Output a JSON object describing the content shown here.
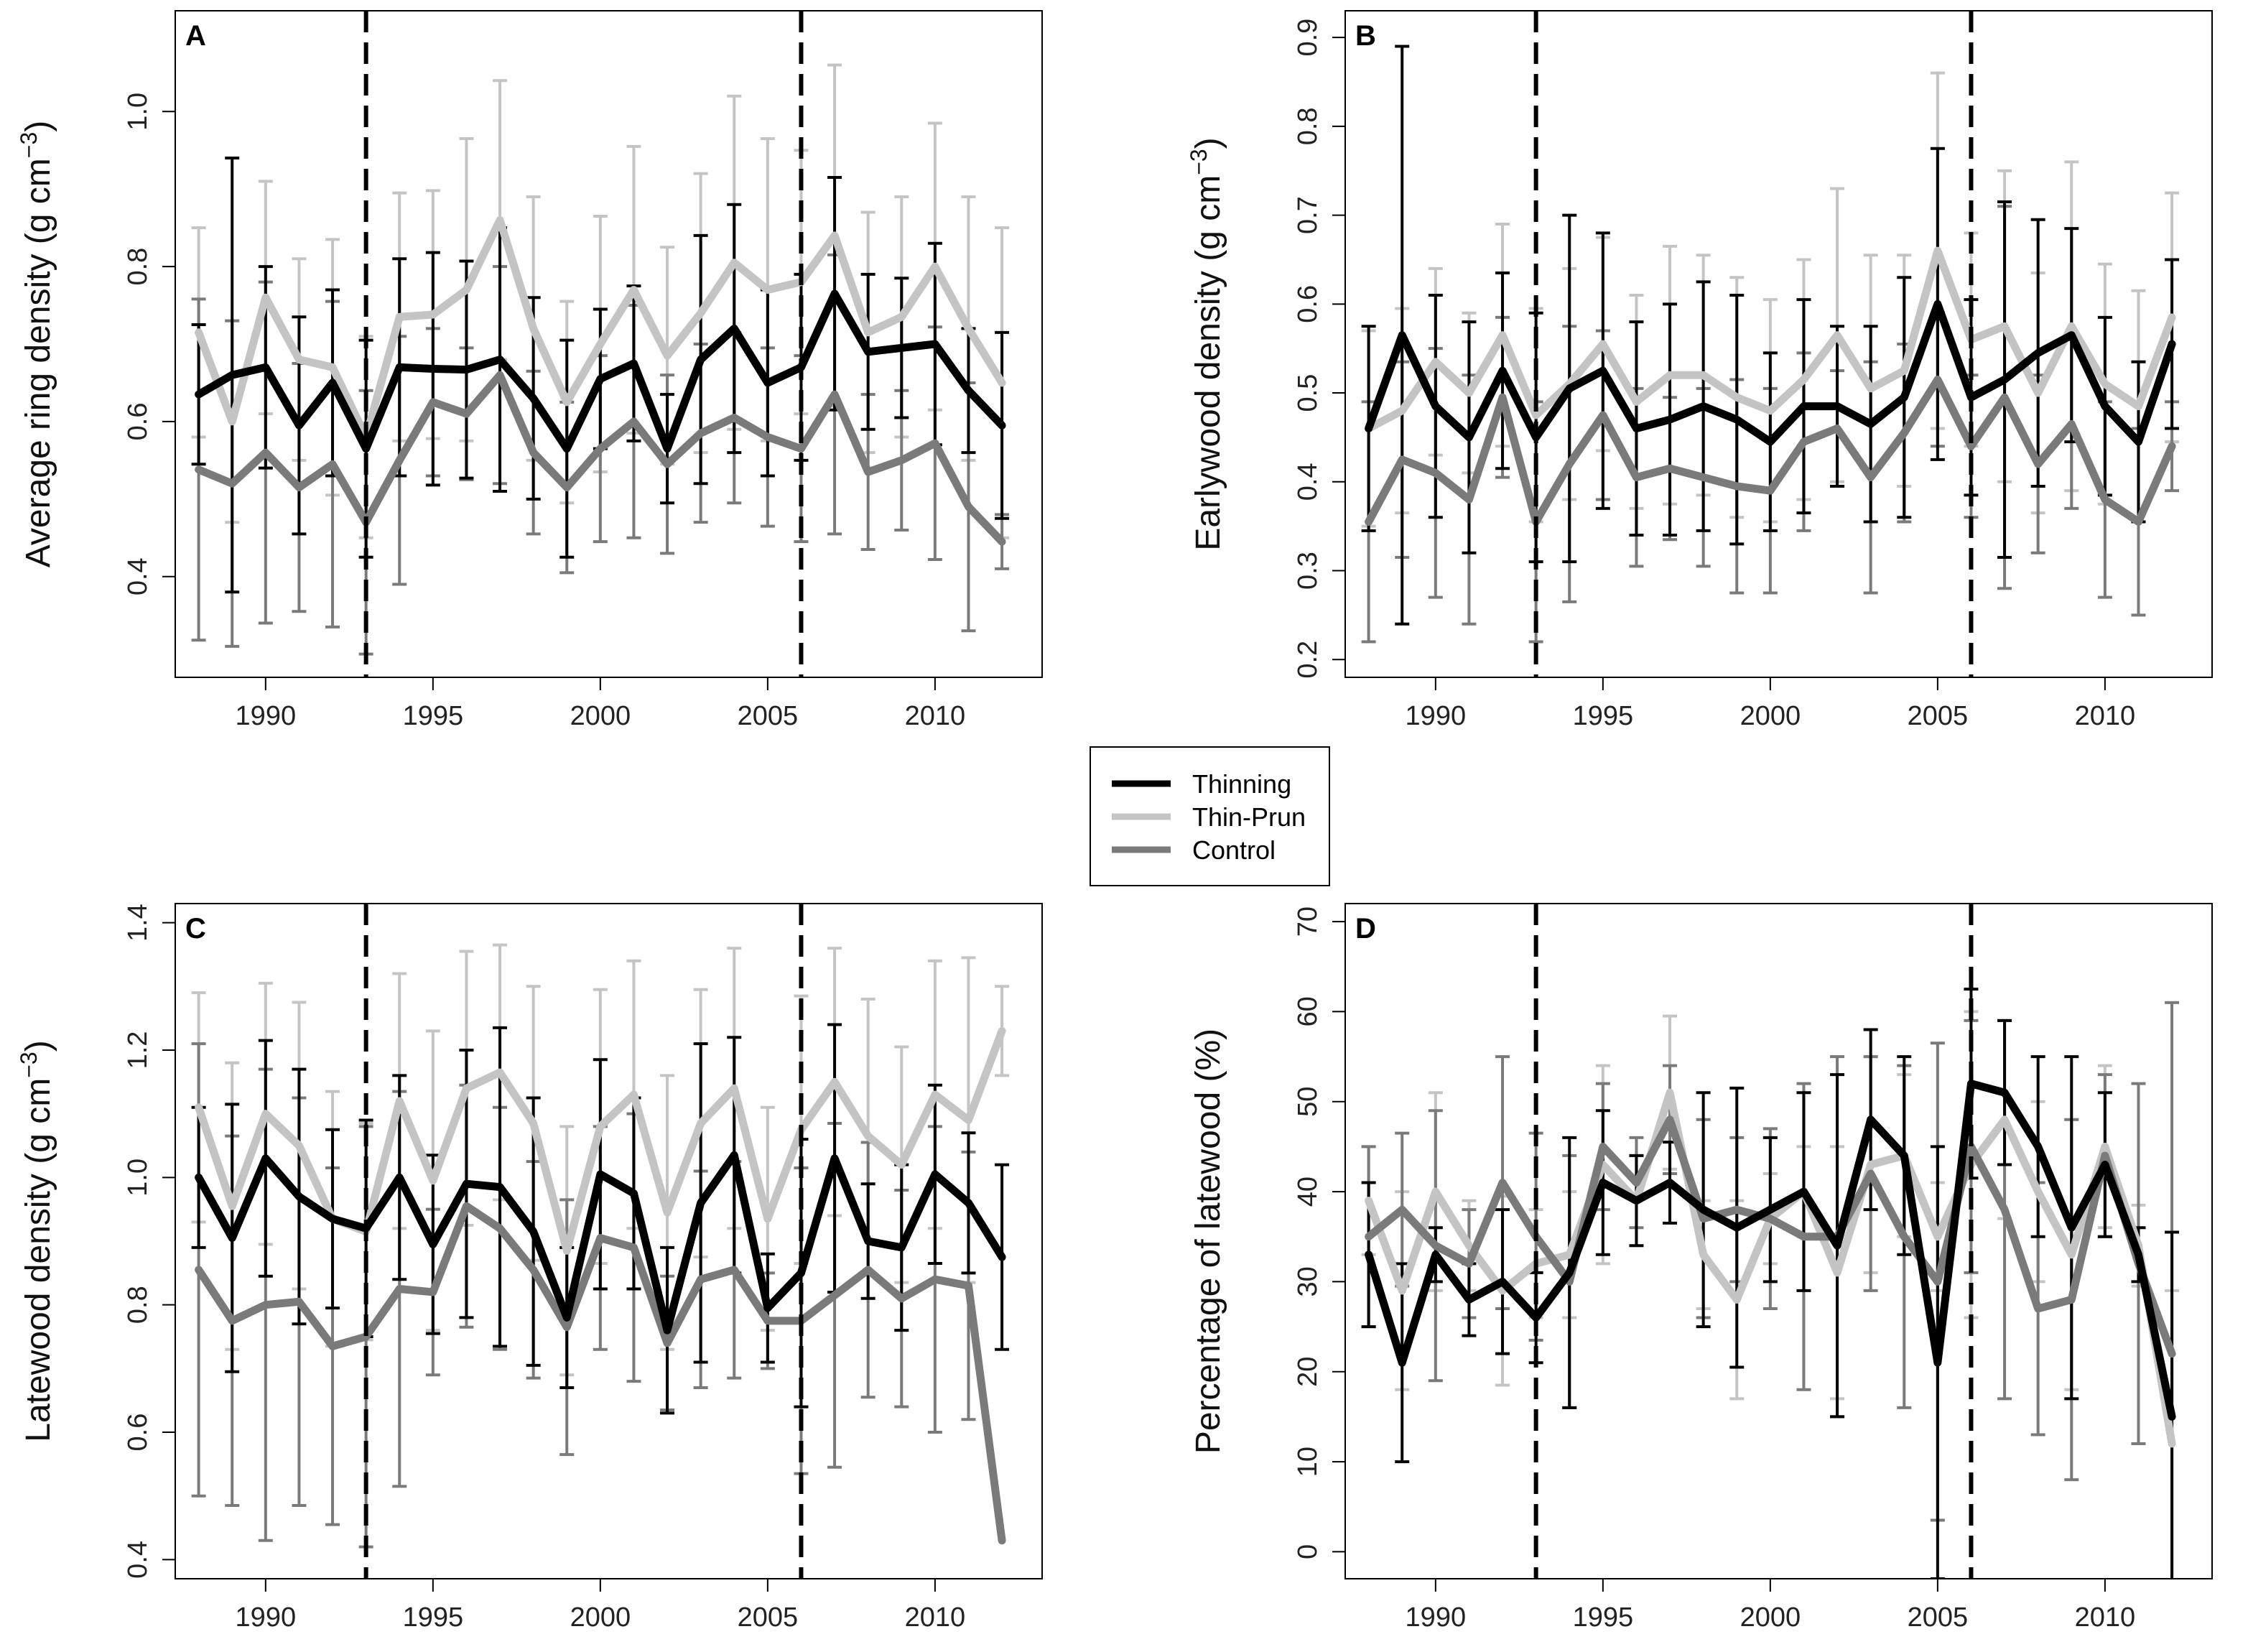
{
  "legend": {
    "items": [
      {
        "label": "Thinning",
        "color": "#000000"
      },
      {
        "label": "Thin-Prun",
        "color": "#c4c4c4"
      },
      {
        "label": "Control",
        "color": "#7a7a7a"
      }
    ]
  },
  "chart_data": [
    {
      "panel": "A",
      "type": "line",
      "ylabel": "Average ring density (g cm",
      "ylabel_unit_exp": "−3",
      "ylabel_close": ")",
      "xlim": [
        1987.3,
        2013.2
      ],
      "ylim": [
        0.27,
        1.13
      ],
      "yticks": [
        0.4,
        0.6,
        0.8,
        1.0
      ],
      "ytick_labels": [
        "0.4",
        "0.6",
        "0.8",
        "1.0"
      ],
      "xticks": [
        1990,
        1995,
        2000,
        2005,
        2010
      ],
      "xtick_labels": [
        "1990",
        "1995",
        "2000",
        "2005",
        "2010"
      ],
      "vlines": [
        1993,
        2006
      ],
      "x": [
        1988,
        1989,
        1990,
        1991,
        1992,
        1993,
        1994,
        1995,
        1996,
        1997,
        1998,
        1999,
        2000,
        2001,
        2002,
        2003,
        2004,
        2005,
        2006,
        2007,
        2008,
        2009,
        2010,
        2011,
        2012
      ],
      "series": [
        {
          "name": "Thinning",
          "color": "#000000",
          "values": [
            0.635,
            0.66,
            0.67,
            0.595,
            0.65,
            0.565,
            0.67,
            0.668,
            0.667,
            0.68,
            0.63,
            0.565,
            0.655,
            0.675,
            0.565,
            0.68,
            0.72,
            0.65,
            0.67,
            0.765,
            0.69,
            0.695,
            0.7,
            0.64,
            0.595
          ],
          "err": [
            0.09,
            0.28,
            0.13,
            0.14,
            0.12,
            0.14,
            0.14,
            0.15,
            0.14,
            0.17,
            0.13,
            0.14,
            0.09,
            0.1,
            0.07,
            0.16,
            0.16,
            0.12,
            0.12,
            0.15,
            0.1,
            0.09,
            0.13,
            0.08,
            0.12
          ]
        },
        {
          "name": "Thin-Prun",
          "color": "#c4c4c4",
          "values": [
            0.715,
            0.6,
            0.76,
            0.68,
            0.67,
            0.58,
            0.735,
            0.738,
            0.77,
            0.86,
            0.72,
            0.625,
            0.7,
            0.77,
            0.685,
            0.74,
            0.805,
            0.77,
            0.78,
            0.84,
            0.715,
            0.735,
            0.8,
            0.72,
            0.65
          ],
          "err": [
            0.135,
            0.13,
            0.15,
            0.13,
            0.165,
            0.13,
            0.16,
            0.16,
            0.195,
            0.18,
            0.17,
            0.13,
            0.165,
            0.185,
            0.14,
            0.18,
            0.215,
            0.195,
            0.17,
            0.22,
            0.155,
            0.155,
            0.185,
            0.17,
            0.2
          ]
        },
        {
          "name": "Control",
          "color": "#7a7a7a",
          "values": [
            0.538,
            0.52,
            0.56,
            0.515,
            0.545,
            0.47,
            0.55,
            0.625,
            0.61,
            0.66,
            0.56,
            0.515,
            0.565,
            0.6,
            0.545,
            0.585,
            0.605,
            0.58,
            0.565,
            0.635,
            0.535,
            0.55,
            0.572,
            0.49,
            0.445
          ],
          "err": [
            0.22,
            0.21,
            0.22,
            0.16,
            0.21,
            0.17,
            0.16,
            0.095,
            0.085,
            0.14,
            0.105,
            0.11,
            0.12,
            0.15,
            0.115,
            0.115,
            0.11,
            0.115,
            0.12,
            0.18,
            0.1,
            0.09,
            0.15,
            0.16,
            0.035
          ]
        }
      ]
    },
    {
      "panel": "B",
      "type": "line",
      "ylabel": "Earlywood density (g cm",
      "ylabel_unit_exp": "−3",
      "ylabel_close": ")",
      "xlim": [
        1987.3,
        2013.2
      ],
      "ylim": [
        0.18,
        0.93
      ],
      "yticks": [
        0.2,
        0.3,
        0.4,
        0.5,
        0.6,
        0.7,
        0.8,
        0.9
      ],
      "ytick_labels": [
        "0.2",
        "0.3",
        "0.4",
        "0.5",
        "0.6",
        "0.7",
        "0.8",
        "0.9"
      ],
      "xticks": [
        1990,
        1995,
        2000,
        2005,
        2010
      ],
      "xtick_labels": [
        "1990",
        "1995",
        "2000",
        "2005",
        "2010"
      ],
      "vlines": [
        1993,
        2006
      ],
      "x": [
        1988,
        1989,
        1990,
        1991,
        1992,
        1993,
        1994,
        1995,
        1996,
        1997,
        1998,
        1999,
        2000,
        2001,
        2002,
        2003,
        2004,
        2005,
        2006,
        2007,
        2008,
        2009,
        2010,
        2011,
        2012
      ],
      "series": [
        {
          "name": "Thinning",
          "color": "#000000",
          "values": [
            0.46,
            0.565,
            0.485,
            0.45,
            0.525,
            0.45,
            0.505,
            0.525,
            0.46,
            0.47,
            0.485,
            0.47,
            0.445,
            0.485,
            0.485,
            0.465,
            0.495,
            0.6,
            0.495,
            0.515,
            0.545,
            0.565,
            0.485,
            0.445,
            0.555
          ],
          "err": [
            0.115,
            0.325,
            0.125,
            0.13,
            0.11,
            0.14,
            0.195,
            0.155,
            0.12,
            0.13,
            0.14,
            0.14,
            0.1,
            0.12,
            0.09,
            0.11,
            0.135,
            0.175,
            0.11,
            0.2,
            0.15,
            0.12,
            0.1,
            0.09,
            0.095
          ]
        },
        {
          "name": "Thin-Prun",
          "color": "#c4c4c4",
          "values": [
            0.46,
            0.48,
            0.535,
            0.5,
            0.565,
            0.475,
            0.51,
            0.555,
            0.49,
            0.52,
            0.52,
            0.495,
            0.48,
            0.515,
            0.565,
            0.505,
            0.525,
            0.66,
            0.56,
            0.575,
            0.5,
            0.575,
            0.51,
            0.485,
            0.585
          ],
          "err": [
            0.11,
            0.115,
            0.105,
            0.09,
            0.125,
            0.12,
            0.13,
            0.12,
            0.12,
            0.145,
            0.135,
            0.135,
            0.125,
            0.135,
            0.165,
            0.15,
            0.13,
            0.2,
            0.12,
            0.175,
            0.135,
            0.185,
            0.135,
            0.13,
            0.14
          ]
        },
        {
          "name": "Control",
          "color": "#7a7a7a",
          "values": [
            0.355,
            0.425,
            0.41,
            0.38,
            0.495,
            0.355,
            0.42,
            0.475,
            0.405,
            0.415,
            0.405,
            0.395,
            0.39,
            0.445,
            0.46,
            0.405,
            0.455,
            0.515,
            0.44,
            0.495,
            0.42,
            0.465,
            0.38,
            0.355,
            0.44
          ],
          "err": [
            0.135,
            0.11,
            0.14,
            0.14,
            0.09,
            0.135,
            0.155,
            0.095,
            0.1,
            0.08,
            0.1,
            0.12,
            0.115,
            0.1,
            0.065,
            0.13,
            0.1,
            0.075,
            0.08,
            0.215,
            0.1,
            0.095,
            0.11,
            0.105,
            0.05
          ]
        }
      ]
    },
    {
      "panel": "C",
      "type": "line",
      "ylabel": "Latewood density (g cm",
      "ylabel_unit_exp": "−3",
      "ylabel_close": ")",
      "xlim": [
        1987.3,
        2013.2
      ],
      "ylim": [
        0.37,
        1.43
      ],
      "yticks": [
        0.4,
        0.6,
        0.8,
        1.0,
        1.2,
        1.4
      ],
      "ytick_labels": [
        "0.4",
        "0.6",
        "0.8",
        "1.0",
        "1.2",
        "1.4"
      ],
      "xticks": [
        1990,
        1995,
        2000,
        2005,
        2010
      ],
      "xtick_labels": [
        "1990",
        "1995",
        "2000",
        "2005",
        "2010"
      ],
      "vlines": [
        1993,
        2006
      ],
      "x": [
        1988,
        1989,
        1990,
        1991,
        1992,
        1993,
        1994,
        1995,
        1996,
        1997,
        1998,
        1999,
        2000,
        2001,
        2002,
        2003,
        2004,
        2005,
        2006,
        2007,
        2008,
        2009,
        2010,
        2011,
        2012
      ],
      "series": [
        {
          "name": "Thinning",
          "color": "#000000",
          "values": [
            1.0,
            0.905,
            1.03,
            0.97,
            0.935,
            0.92,
            1.0,
            0.895,
            0.99,
            0.985,
            0.915,
            0.78,
            1.005,
            0.975,
            0.76,
            0.96,
            1.035,
            0.795,
            0.85,
            1.03,
            0.9,
            0.89,
            1.005,
            0.96,
            0.875
          ],
          "err": [
            0.11,
            0.21,
            0.185,
            0.2,
            0.14,
            0.17,
            0.16,
            0.14,
            0.21,
            0.25,
            0.21,
            0.11,
            0.18,
            0.15,
            0.13,
            0.25,
            0.185,
            0.085,
            0.21,
            0.21,
            0.09,
            0.13,
            0.14,
            0.11,
            0.145
          ]
        },
        {
          "name": "Thin-Prun",
          "color": "#c4c4c4",
          "values": [
            1.11,
            0.955,
            1.1,
            1.05,
            0.935,
            0.915,
            1.12,
            0.995,
            1.14,
            1.165,
            1.085,
            0.885,
            1.08,
            1.13,
            0.945,
            1.085,
            1.14,
            0.935,
            1.075,
            1.15,
            1.065,
            1.02,
            1.13,
            1.09,
            1.23
          ],
          "err": [
            0.18,
            0.225,
            0.205,
            0.225,
            0.2,
            0.17,
            0.2,
            0.235,
            0.215,
            0.2,
            0.215,
            0.195,
            0.215,
            0.21,
            0.215,
            0.21,
            0.22,
            0.175,
            0.21,
            0.21,
            0.215,
            0.185,
            0.21,
            0.255,
            0.07
          ]
        },
        {
          "name": "Control",
          "color": "#7a7a7a",
          "values": [
            0.855,
            0.775,
            0.8,
            0.805,
            0.735,
            0.75,
            0.825,
            0.82,
            0.955,
            0.92,
            0.855,
            0.765,
            0.905,
            0.89,
            0.74,
            0.84,
            0.855,
            0.775,
            0.775,
            0.815,
            0.855,
            0.81,
            0.84,
            0.83,
            0.43
          ],
          "err": [
            0.355,
            0.29,
            0.37,
            0.32,
            0.28,
            0.33,
            0.31,
            0.13,
            0.19,
            0.19,
            0.17,
            0.2,
            0.175,
            0.21,
            0.105,
            0.17,
            0.17,
            0.075,
            0.24,
            0.27,
            0.2,
            0.17,
            0.24,
            0.21,
            0.0
          ]
        }
      ]
    },
    {
      "panel": "D",
      "type": "line",
      "ylabel": "Percentage of latewood (%)",
      "ylabel_unit_exp": "",
      "ylabel_close": "",
      "xlim": [
        1987.3,
        2013.2
      ],
      "ylim": [
        -3,
        72
      ],
      "yticks": [
        0,
        10,
        20,
        30,
        40,
        50,
        60,
        70
      ],
      "ytick_labels": [
        "0",
        "10",
        "20",
        "30",
        "40",
        "50",
        "60",
        "70"
      ],
      "xticks": [
        1990,
        1995,
        2000,
        2005,
        2010
      ],
      "xtick_labels": [
        "1990",
        "1995",
        "2000",
        "2005",
        "2010"
      ],
      "vlines": [
        1993,
        2006
      ],
      "x": [
        1988,
        1989,
        1990,
        1991,
        1992,
        1993,
        1994,
        1995,
        1996,
        1997,
        1998,
        1999,
        2000,
        2001,
        2002,
        2003,
        2004,
        2005,
        2006,
        2007,
        2008,
        2009,
        2010,
        2011,
        2012
      ],
      "series": [
        {
          "name": "Thinning",
          "color": "#000000",
          "values": [
            33,
            21,
            33,
            28,
            30,
            26,
            31,
            41,
            39,
            41,
            38,
            36,
            38,
            40,
            34,
            48,
            44,
            21,
            52,
            51,
            45,
            36,
            43,
            33,
            15
          ],
          "err": [
            8,
            11,
            3,
            4,
            8,
            5,
            15,
            8,
            5,
            4.5,
            13,
            15.5,
            8,
            11,
            19,
            10,
            11,
            24,
            10.5,
            8,
            10,
            19,
            8,
            3,
            20.5
          ]
        },
        {
          "name": "Thin-Prun",
          "color": "#c4c4c4",
          "values": [
            39,
            29,
            40,
            34,
            29,
            32,
            33,
            43,
            39,
            51,
            33,
            28,
            37,
            40,
            31,
            43,
            44,
            35,
            43,
            48,
            40,
            33,
            45,
            34,
            12
          ],
          "err": [
            6,
            11,
            11,
            5,
            10.5,
            6,
            7,
            11,
            5,
            8.5,
            6,
            11,
            5,
            5,
            14,
            12,
            9,
            6,
            17,
            11,
            10,
            15,
            9,
            4.5,
            17
          ]
        },
        {
          "name": "Control",
          "color": "#7a7a7a",
          "values": [
            35,
            38,
            34,
            32,
            41,
            35,
            30,
            45,
            41,
            48,
            37,
            38,
            37,
            35,
            35,
            42,
            35,
            30,
            45,
            38,
            27,
            28,
            44,
            32,
            22
          ],
          "err": [
            10,
            8.5,
            15,
            6,
            14,
            11.5,
            14,
            7,
            5,
            6,
            11,
            8,
            10,
            17,
            20,
            13,
            19,
            26.5,
            14,
            21,
            14,
            20,
            9,
            20,
            39
          ]
        }
      ]
    }
  ]
}
